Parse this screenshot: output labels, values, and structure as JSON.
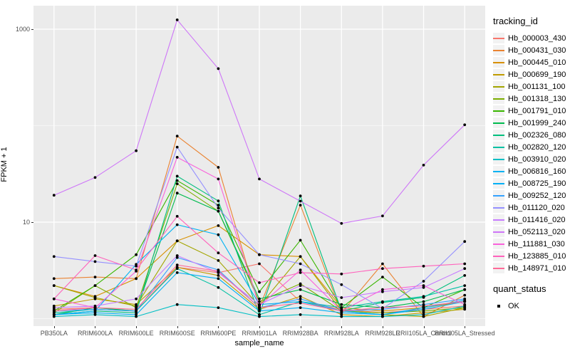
{
  "figure": {
    "panel_bg": "#EBEBEB",
    "grid_color": "#FFFFFF",
    "tick_label_color": "#4D4D4D",
    "point_color": "#000000"
  },
  "y_axis": {
    "title": "FPKM + 1",
    "tick_labels": [
      "1000",
      "10"
    ]
  },
  "x_axis": {
    "title": "sample_name"
  },
  "legend": {
    "title": "tracking_id",
    "quant_title": "quant_status",
    "quant_items": [
      {
        "label": "OK"
      }
    ]
  },
  "chart_data": {
    "type": "line",
    "title": "",
    "xlabel": "sample_name",
    "ylabel": "FPKM + 1",
    "y_scale": "log10",
    "ylim": [
      1,
      1500
    ],
    "y_major_ticks": [
      10,
      1000
    ],
    "y_minor_gridlines": [
      1,
      100
    ],
    "grid": true,
    "legend_position": "right",
    "categories": [
      "PB350LA",
      "RRIM600LA",
      "RRIM600LE",
      "RRIM600SE",
      "RRIM600PE",
      "RRIM901LA",
      "RRIM928BA",
      "RRIM928LA",
      "RRIM928LE",
      "RRII105LA_Control",
      "RRII105LA_Stressed"
    ],
    "series": [
      {
        "name": "Hb_000003_430",
        "color": "#F8766D",
        "values": [
          1.25,
          1.3,
          1.2,
          3.4,
          3.0,
          3.7,
          1.5,
          1.25,
          1.15,
          1.25,
          1.35
        ]
      },
      {
        "name": "Hb_000431_030",
        "color": "#EA8331",
        "values": [
          2.6,
          2.7,
          2.6,
          78,
          37,
          1.3,
          15,
          1.15,
          3.7,
          1.05,
          1.75
        ]
      },
      {
        "name": "Hb_000445_010",
        "color": "#D89000",
        "values": [
          2.2,
          1.7,
          2.6,
          6.4,
          9.2,
          4.6,
          4.4,
          1.3,
          1.2,
          1.3,
          1.5
        ]
      },
      {
        "name": "Hb_000699_190",
        "color": "#C09B00",
        "values": [
          1.35,
          1.6,
          1.4,
          3.4,
          2.8,
          1.25,
          1.7,
          1.1,
          1.05,
          1.15,
          1.25
        ]
      },
      {
        "name": "Hb_001131_100",
        "color": "#A3A500",
        "values": [
          2.2,
          1.65,
          1.35,
          6.4,
          4.0,
          1.35,
          4.4,
          1.2,
          1.1,
          1.05,
          1.3
        ]
      },
      {
        "name": "Hb_001318_130",
        "color": "#7CAE00",
        "values": [
          1.15,
          2.2,
          1.3,
          25,
          13,
          1.5,
          2.3,
          1.2,
          1.15,
          1.2,
          1.3
        ]
      },
      {
        "name": "Hb_001791_010",
        "color": "#39B600",
        "values": [
          1.2,
          2.2,
          4.6,
          27,
          15,
          1.9,
          6.5,
          1.3,
          2.7,
          1.3,
          2.0
        ]
      },
      {
        "name": "Hb_001999_240",
        "color": "#00BB4E",
        "values": [
          1.1,
          1.3,
          1.2,
          20,
          13,
          1.6,
          2.0,
          1.4,
          1.3,
          1.5,
          2.0
        ]
      },
      {
        "name": "Hb_002326_080",
        "color": "#00BF7D",
        "values": [
          1.1,
          1.2,
          1.15,
          30,
          16.6,
          1.1,
          18.7,
          1.2,
          1.47,
          1.66,
          2.8
        ]
      },
      {
        "name": "Hb_002820_120",
        "color": "#00C1A3",
        "values": [
          1.15,
          1.25,
          1.2,
          3.3,
          2.1,
          1.1,
          1.5,
          1.3,
          1.5,
          1.7,
          2.2
        ]
      },
      {
        "name": "Hb_003910_020",
        "color": "#00BFC4",
        "values": [
          1.05,
          1.1,
          1.05,
          1.4,
          1.3,
          1.05,
          1.1,
          1.05,
          1.05,
          1.1,
          1.35
        ]
      },
      {
        "name": "Hb_006816_160",
        "color": "#00B2F3",
        "values": [
          1.1,
          1.2,
          3.65,
          9.4,
          7.4,
          1.4,
          1.5,
          1.2,
          1.1,
          1.3,
          1.55
        ]
      },
      {
        "name": "Hb_008725_190",
        "color": "#00B0F6",
        "values": [
          1.1,
          1.15,
          1.1,
          3.0,
          2.6,
          1.2,
          1.3,
          1.15,
          1.1,
          1.25,
          1.5
        ]
      },
      {
        "name": "Hb_009252_120",
        "color": "#35A2FF",
        "values": [
          1.2,
          1.25,
          1.2,
          4.3,
          3.2,
          1.3,
          1.6,
          1.2,
          1.25,
          1.4,
          1.6
        ]
      },
      {
        "name": "Hb_011120_020",
        "color": "#9590FF",
        "values": [
          4.4,
          3.9,
          3.5,
          60,
          14,
          4.6,
          3.7,
          2.25,
          1.27,
          2.44,
          6.3
        ]
      },
      {
        "name": "Hb_011416_020",
        "color": "#C77CFF",
        "values": [
          1.3,
          1.35,
          1.6,
          4.5,
          3.0,
          1.4,
          2.2,
          1.65,
          1.9,
          2.1,
          3.3
        ]
      },
      {
        "name": "Hb_052113_020",
        "color": "#CE76F8",
        "values": [
          19,
          29,
          55,
          1250,
          390,
          28,
          16.5,
          9.7,
          11.6,
          39,
          102
        ]
      },
      {
        "name": "Hb_111881_030",
        "color": "#FA62DB",
        "values": [
          1.6,
          1.3,
          3.1,
          47,
          28,
          1.35,
          3.2,
          1.2,
          2.0,
          2.2,
          1.4
        ]
      },
      {
        "name": "Hb_123885_010",
        "color": "#FF62BC",
        "values": [
          1.6,
          4.5,
          3.2,
          11.5,
          4.8,
          2.36,
          3.0,
          2.9,
          3.3,
          3.5,
          3.7
        ]
      },
      {
        "name": "Hb_148971_010",
        "color": "#FF6A98",
        "values": [
          1.2,
          1.3,
          1.25,
          3.6,
          3.1,
          1.3,
          1.45,
          1.2,
          1.3,
          1.35,
          1.5
        ]
      }
    ]
  }
}
